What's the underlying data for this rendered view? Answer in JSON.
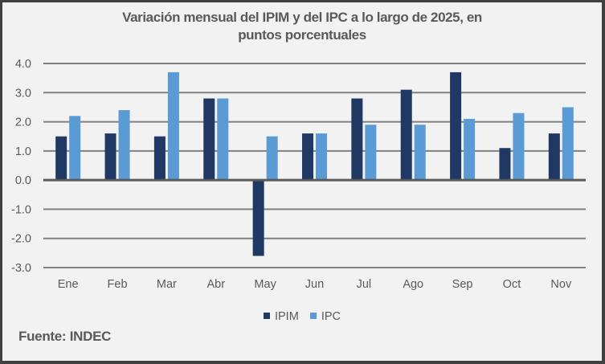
{
  "chart_data": {
    "type": "bar",
    "title": "Variación mensual del IPIM y del IPC a lo largo de 2025, en puntos porcentuales",
    "title_lines": [
      "Variación mensual del IPIM y del IPC a lo largo de 2025, en",
      "puntos porcentuales"
    ],
    "xlabel": "",
    "ylabel": "",
    "categories": [
      "Ene",
      "Feb",
      "Mar",
      "Abr",
      "May",
      "Jun",
      "Jul",
      "Ago",
      "Sep",
      "Oct",
      "Nov"
    ],
    "series": [
      {
        "name": "IPIM",
        "color": "#1f3864",
        "values": [
          1.5,
          1.6,
          1.5,
          2.8,
          -2.6,
          1.6,
          2.8,
          3.1,
          3.7,
          1.1,
          1.6
        ]
      },
      {
        "name": "IPC",
        "color": "#5b9bd5",
        "values": [
          2.2,
          2.4,
          3.7,
          2.8,
          1.5,
          1.6,
          1.9,
          1.9,
          2.1,
          2.3,
          2.5
        ]
      }
    ],
    "ylim": [
      -3.0,
      4.0
    ],
    "yticks": [
      4.0,
      3.0,
      2.0,
      1.0,
      0.0,
      -1.0,
      -2.0,
      -3.0
    ],
    "ytick_labels": [
      "4.0",
      "3.0",
      "2.0",
      "1.0",
      "0.0",
      "-1.0",
      "-2.0",
      "-3.0"
    ],
    "grid": true,
    "legend_position": "bottom"
  },
  "source": "Fuente: INDEC",
  "colors": {
    "background": "#f2f2f2",
    "border": "#404040",
    "text": "#595959",
    "grid": "#808080",
    "zero_line": "#595959"
  }
}
